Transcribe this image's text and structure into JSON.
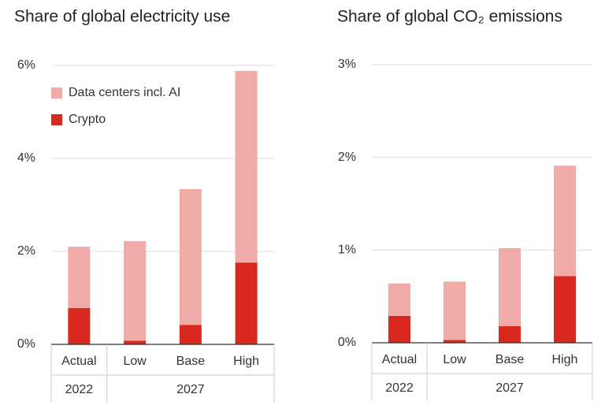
{
  "chart_data": [
    {
      "type": "stacked_bar",
      "title": "Share of global electricity use",
      "categories": [
        "Actual",
        "Low",
        "Base",
        "High"
      ],
      "category_groups": [
        "2022",
        "2027",
        "2027",
        "2027"
      ],
      "series": [
        {
          "name": "Crypto",
          "color": "#d9291f",
          "values": [
            0.78,
            0.08,
            0.42,
            1.76
          ]
        },
        {
          "name": "Data centers incl. AI",
          "color": "#f0aaa8",
          "values": [
            1.32,
            2.14,
            2.92,
            4.12
          ]
        }
      ],
      "ylim": [
        0,
        6
      ],
      "yticks": [
        {
          "value": 0,
          "label": "0%"
        },
        {
          "value": 2,
          "label": "2%"
        },
        {
          "value": 4,
          "label": "4%"
        },
        {
          "value": 6,
          "label": "6%"
        }
      ],
      "grid": true,
      "legend": "upper left"
    },
    {
      "type": "stacked_bar",
      "title": "Share of global CO₂ emissions",
      "categories": [
        "Actual",
        "Low",
        "Base",
        "High"
      ],
      "category_groups": [
        "2022",
        "2027",
        "2027",
        "2027"
      ],
      "series": [
        {
          "color": "#d9291f",
          "values": [
            0.29,
            0.03,
            0.18,
            0.72
          ]
        },
        {
          "color": "#f0aaa8",
          "values": [
            0.35,
            0.63,
            0.84,
            1.19
          ]
        }
      ],
      "ylim": [
        0,
        3
      ],
      "yticks": [
        {
          "value": 0,
          "label": "0%"
        },
        {
          "value": 1,
          "label": "1%"
        },
        {
          "value": 2,
          "label": "2%"
        },
        {
          "value": 3,
          "label": "3%"
        }
      ],
      "grid": true
    }
  ]
}
